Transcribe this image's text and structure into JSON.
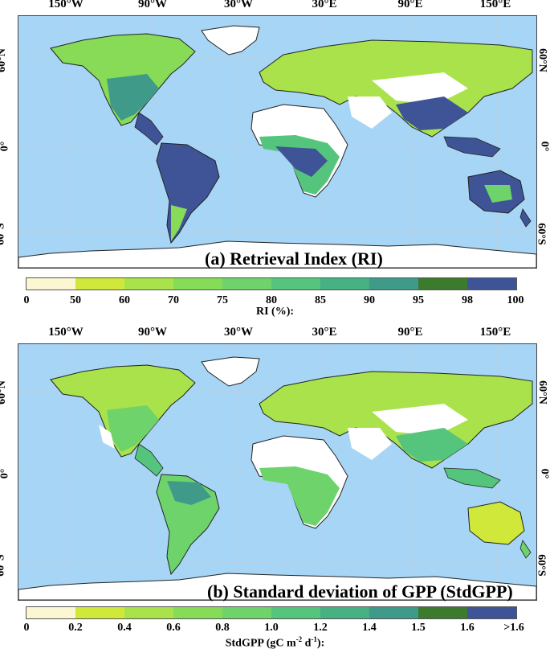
{
  "colors": {
    "ocean": "#a7d5f5",
    "land_blank": "#ffffff",
    "coast": "#222222",
    "colorbar": [
      "#fbf7d3",
      "#cfe83a",
      "#a9e24a",
      "#86db57",
      "#6dd36a",
      "#55c47c",
      "#48b184",
      "#3f9a8a",
      "#3b8488",
      "#3c7a2e",
      "#3f5496"
    ]
  },
  "lon_ticks": [
    "150°W",
    "90°W",
    "30°W",
    "30°E",
    "90°E",
    "150°E"
  ],
  "lat_ticks": [
    "60°N",
    "0°",
    "60°S"
  ],
  "panels": [
    {
      "title": "(a) Retrieval Index (RI)",
      "colorbar_ticks": [
        "0",
        "50",
        "60",
        "70",
        "75",
        "80",
        "85",
        "90",
        "95",
        "98",
        "100"
      ],
      "colorbar_label": "RI (%):"
    },
    {
      "title": "(b) Standard deviation of GPP (StdGPP)",
      "colorbar_ticks": [
        "0",
        "0.2",
        "0.4",
        "0.6",
        "0.8",
        "1.0",
        "1.2",
        "1.4",
        "1.5",
        "1.6",
        ">1.6"
      ],
      "colorbar_label_parts": [
        "StdGPP (gC m",
        "-2",
        " d",
        "-1",
        "):"
      ]
    }
  ]
}
